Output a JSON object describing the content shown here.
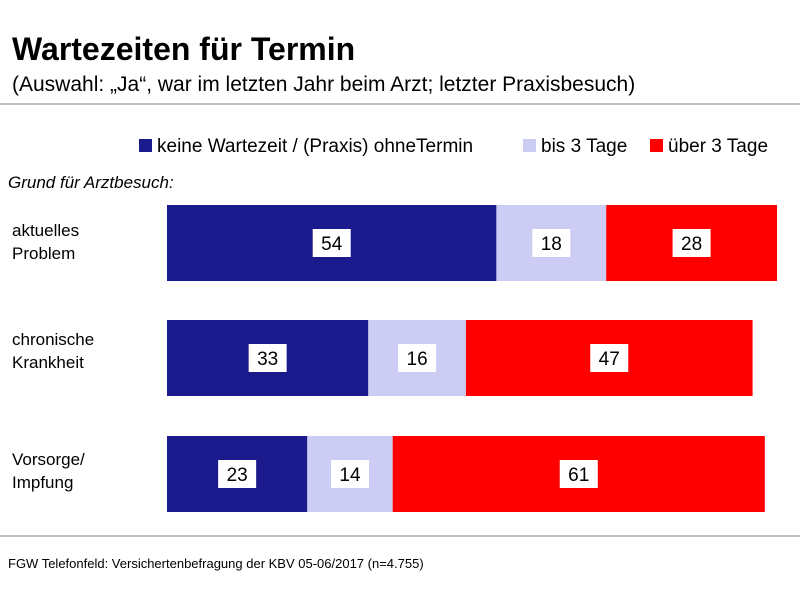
{
  "title": "Wartezeiten für Termin",
  "subtitle": "(Auswahl: „Ja“, war im letzten Jahr beim Arzt; letzter Praxisbesuch)",
  "section_label": "Grund für Arztbesuch:",
  "source": "FGW Telefonfeld: Versichertenbefragung der KBV 05-06/2017 (n=4.755)",
  "colors": {
    "series_1": "#1a1a8c",
    "series_2": "#ccccf5",
    "series_3": "#ff0000",
    "rule": "#aaaaaa",
    "label_box": "#ffffff"
  },
  "chart_data": {
    "type": "bar",
    "orientation": "horizontal",
    "stacked": true,
    "categories": [
      [
        "aktuelles",
        "Problem"
      ],
      [
        "chronische",
        "Krankheit"
      ],
      [
        "Vorsorge/",
        "Impfung"
      ]
    ],
    "series": [
      {
        "name": "keine Wartezeit / (Praxis) ohneTermin",
        "values": [
          54,
          33,
          23
        ]
      },
      {
        "name": "bis 3 Tage",
        "values": [
          18,
          16,
          14
        ]
      },
      {
        "name": "über 3 Tage",
        "values": [
          28,
          47,
          61
        ]
      }
    ],
    "xlim": [
      0,
      100
    ],
    "legend_position": "top-right",
    "grid": false
  }
}
